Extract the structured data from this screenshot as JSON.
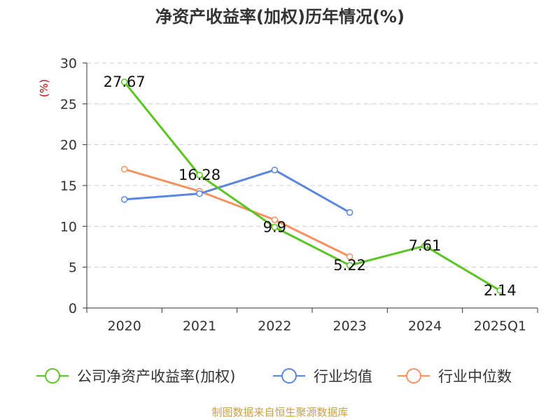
{
  "chart_data": {
    "type": "line",
    "title": "净资产收益率(加权)历年情况(%)",
    "ylabel": "(%)",
    "xlabel": "",
    "categories": [
      "2020",
      "2021",
      "2022",
      "2023",
      "2024",
      "2025Q1"
    ],
    "ylim": [
      0,
      30
    ],
    "yticks": [
      0,
      5,
      10,
      15,
      20,
      25,
      30
    ],
    "grid": true,
    "legend_position": "bottom",
    "series": [
      {
        "name": "公司净资产收益率(加权)",
        "color": "#5cc424",
        "values": [
          27.67,
          16.28,
          9.9,
          5.22,
          7.61,
          2.14
        ],
        "labels": [
          "27.67",
          "16.28",
          "9.9",
          "5.22",
          "7.61",
          "2.14"
        ]
      },
      {
        "name": "行业均值",
        "color": "#5a87dc",
        "values": [
          13.3,
          14.0,
          16.9,
          11.7,
          null,
          null
        ]
      },
      {
        "name": "行业中位数",
        "color": "#f59262",
        "values": [
          17.0,
          14.3,
          10.8,
          6.3,
          null,
          null
        ]
      }
    ],
    "source": "制图数据来自恒生聚源数据库",
    "axis_color": "#333333",
    "ylabel_color": "#cc0000",
    "source_color": "#c8a04a"
  }
}
